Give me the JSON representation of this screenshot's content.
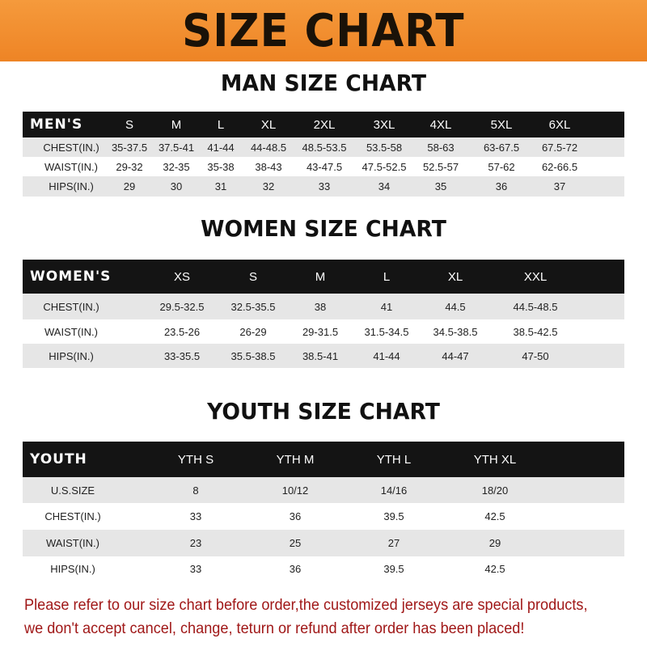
{
  "banner": {
    "title": "SIZE CHART"
  },
  "men": {
    "title": "MAN SIZE CHART",
    "header": [
      "MEN'S",
      "S",
      "M",
      "L",
      "XL",
      "2XL",
      "3XL",
      "4XL",
      "5XL",
      "6XL"
    ],
    "rows": [
      [
        "CHEST(IN.)",
        "35-37.5",
        "37.5-41",
        "41-44",
        "44-48.5",
        "48.5-53.5",
        "53.5-58",
        "58-63",
        "63-67.5",
        "67.5-72"
      ],
      [
        "WAIST(IN.)",
        "29-32",
        "32-35",
        "35-38",
        "38-43",
        "43-47.5",
        "47.5-52.5",
        "52.5-57",
        "57-62",
        "62-66.5"
      ],
      [
        "HIPS(IN.)",
        "29",
        "30",
        "31",
        "32",
        "33",
        "34",
        "35",
        "36",
        "37"
      ]
    ]
  },
  "women": {
    "title": "WOMEN SIZE CHART",
    "header": [
      "WOMEN'S",
      "XS",
      "S",
      "M",
      "L",
      "XL",
      "XXL"
    ],
    "rows": [
      [
        "CHEST(IN.)",
        "29.5-32.5",
        "32.5-35.5",
        "38",
        "41",
        "44.5",
        "44.5-48.5"
      ],
      [
        "WAIST(IN.)",
        "23.5-26",
        "26-29",
        "29-31.5",
        "31.5-34.5",
        "34.5-38.5",
        "38.5-42.5"
      ],
      [
        "HIPS(IN.)",
        "33-35.5",
        "35.5-38.5",
        "38.5-41",
        "41-44",
        "44-47",
        "47-50"
      ]
    ]
  },
  "youth": {
    "title": "YOUTH SIZE CHART",
    "header": [
      "YOUTH",
      "YTH S",
      "YTH M",
      "YTH L",
      "YTH XL"
    ],
    "rows": [
      [
        "U.S.SIZE",
        "8",
        "10/12",
        "14/16",
        "18/20"
      ],
      [
        "CHEST(IN.)",
        "33",
        "36",
        "39.5",
        "42.5"
      ],
      [
        "WAIST(IN.)",
        "23",
        "25",
        "27",
        "29"
      ],
      [
        "HIPS(IN.)",
        "33",
        "36",
        "39.5",
        "42.5"
      ]
    ]
  },
  "notice": {
    "line1": "Please refer to our size chart before order,the customized jerseys are special products,",
    "line2": "we don't accept cancel, change, teturn or refund after order has been placed!"
  },
  "colors": {
    "banner": "#ef8a2a",
    "header_row": "#141414",
    "stripe": "#e6e6e6",
    "notice": "#a01818"
  }
}
